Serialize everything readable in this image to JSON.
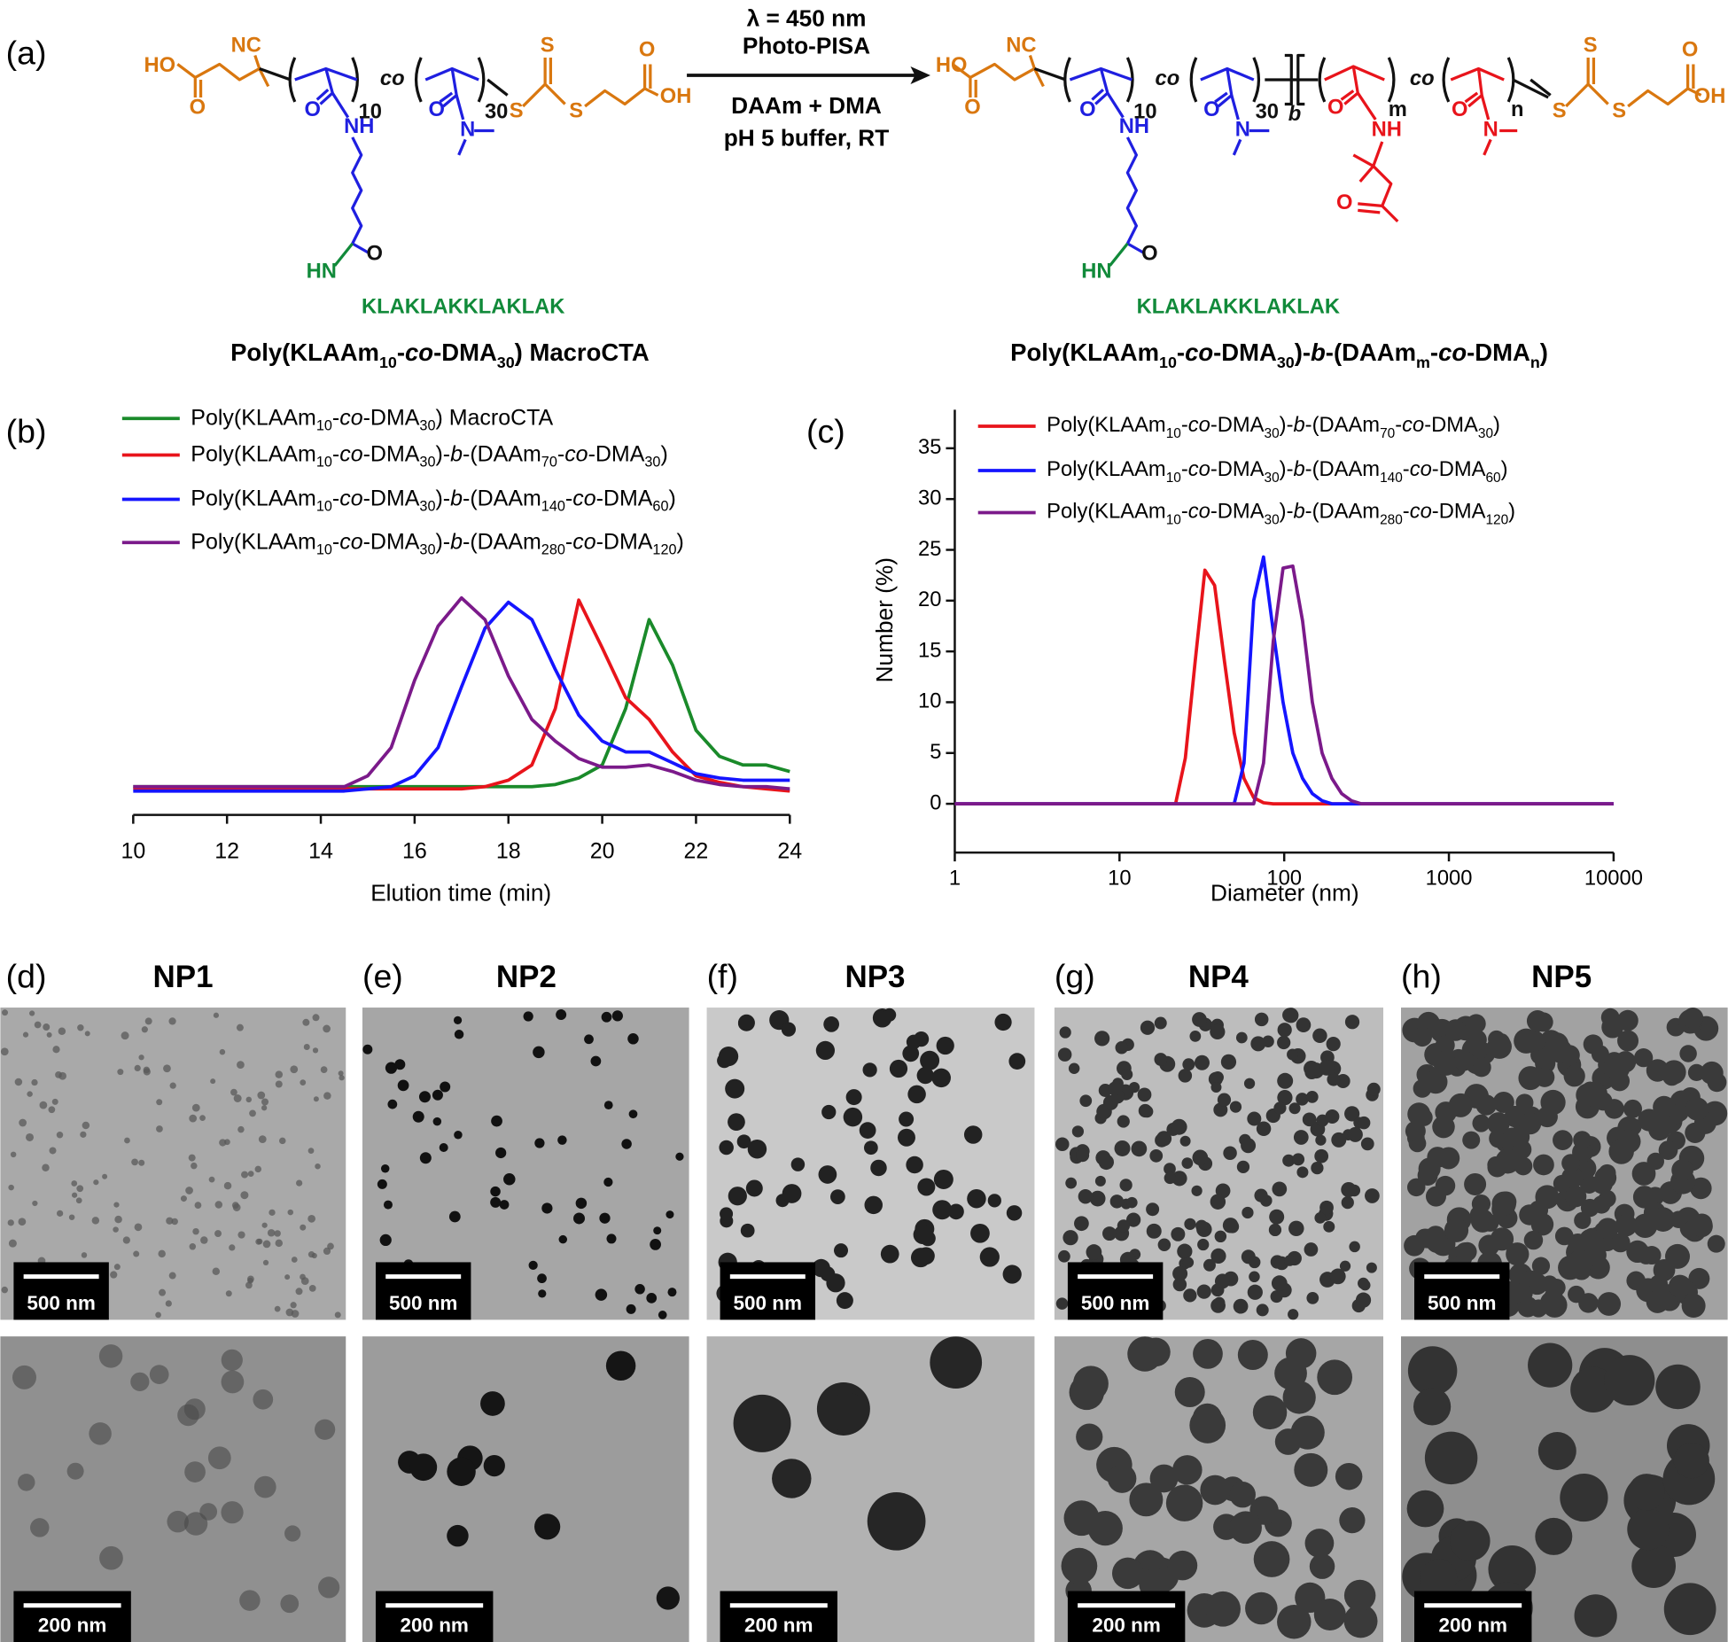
{
  "panel_labels": [
    "(a)",
    "(b)",
    "(c)",
    "(d)",
    "(e)",
    "(f)",
    "(g)",
    "(h)"
  ],
  "scheme": {
    "reaction_conditions": [
      "λ = 450 nm",
      "Photo-PISA",
      "DAAm + DMA",
      "pH 5 buffer, RT"
    ],
    "reactant": {
      "atoms": [
        "HO",
        "O",
        "NC",
        "10",
        "co",
        "30",
        "S",
        "S",
        "S",
        "O",
        "OH",
        "O",
        "NH",
        "O",
        "N",
        "HN",
        "O",
        "KLAKLAKKLAKLAK"
      ],
      "name": "Poly(KLAAm10-co-DMA30) MacroCTA"
    },
    "product": {
      "atoms": [
        "HO",
        "O",
        "NC",
        "10",
        "co",
        "30",
        "b",
        "m",
        "co",
        "n",
        "S",
        "S",
        "S",
        "O",
        "OH",
        "O",
        "NH",
        "O",
        "N",
        "O",
        "NH",
        "O",
        "O",
        "N",
        "HN",
        "O",
        "KLAKLAKKLAKLAK"
      ],
      "name": "Poly(KLAAm10-co-DMA30)-b-(DAAmm-co-DMAn)"
    }
  },
  "chart_data": [
    {
      "type": "line",
      "xlabel": "Elution time (min)",
      "x": [
        10,
        10.5,
        11,
        11.5,
        12,
        12.5,
        13,
        13.5,
        14,
        14.5,
        15,
        15.5,
        16,
        16.5,
        17,
        17.5,
        18,
        18.5,
        19,
        19.5,
        20,
        20.5,
        21,
        21.5,
        22,
        22.5,
        23,
        23.5,
        24
      ],
      "xlim": [
        10,
        24
      ],
      "xticks": [
        10,
        12,
        14,
        16,
        18,
        20,
        22,
        24
      ],
      "ylim": [
        0,
        1
      ],
      "legend": "upper left",
      "series": [
        {
          "name": "Poly(KLAAm10-co-DMA30) MacroCTA",
          "color": "#1a8a2a",
          "values": [
            0.13,
            0.13,
            0.13,
            0.13,
            0.13,
            0.13,
            0.13,
            0.13,
            0.13,
            0.13,
            0.13,
            0.13,
            0.13,
            0.13,
            0.13,
            0.13,
            0.13,
            0.13,
            0.14,
            0.17,
            0.23,
            0.49,
            0.9,
            0.69,
            0.39,
            0.27,
            0.23,
            0.23,
            0.2
          ]
        },
        {
          "name": "Poly(KLAAm10-co-DMA30)-b-(DAAm70-co-DMA30)",
          "color": "#e8141b",
          "values": [
            0.12,
            0.12,
            0.12,
            0.12,
            0.12,
            0.12,
            0.12,
            0.12,
            0.12,
            0.12,
            0.12,
            0.12,
            0.12,
            0.12,
            0.12,
            0.13,
            0.16,
            0.23,
            0.49,
            0.99,
            0.77,
            0.54,
            0.44,
            0.29,
            0.18,
            0.15,
            0.13,
            0.12,
            0.11
          ]
        },
        {
          "name": "Poly(KLAAm10-co-DMA30)-b-(DAAm140-co-DMA60)",
          "color": "#1515ff",
          "values": [
            0.11,
            0.11,
            0.11,
            0.11,
            0.11,
            0.11,
            0.11,
            0.11,
            0.11,
            0.11,
            0.12,
            0.13,
            0.18,
            0.31,
            0.59,
            0.86,
            0.98,
            0.9,
            0.67,
            0.46,
            0.34,
            0.29,
            0.29,
            0.24,
            0.19,
            0.17,
            0.16,
            0.16,
            0.16
          ]
        },
        {
          "name": "Poly(KLAAm10-co-DMA30)-b-(DAAm280-co-DMA120)",
          "color": "#7b1a8a",
          "values": [
            0.13,
            0.13,
            0.13,
            0.13,
            0.13,
            0.13,
            0.13,
            0.13,
            0.13,
            0.13,
            0.18,
            0.31,
            0.62,
            0.87,
            1.0,
            0.9,
            0.64,
            0.44,
            0.34,
            0.26,
            0.22,
            0.22,
            0.23,
            0.2,
            0.16,
            0.14,
            0.13,
            0.13,
            0.12
          ]
        }
      ]
    },
    {
      "type": "line",
      "xlabel": "Diameter (nm)",
      "ylabel": "Number (%)",
      "xscale": "log",
      "x": [
        1,
        19,
        21.9,
        25.1,
        28.8,
        33,
        37.8,
        43.4,
        49.7,
        57,
        65.3,
        74.9,
        85.8,
        98.4,
        112.8,
        129.3,
        148.2,
        169.9,
        194.8,
        223.3,
        256,
        293.4,
        336.4,
        10000
      ],
      "xlim": [
        1,
        10000
      ],
      "xticks": [
        1,
        10,
        100,
        1000,
        10000
      ],
      "ylim": [
        -4.8,
        38.8
      ],
      "yticks": [
        0,
        5,
        10,
        15,
        20,
        25,
        30,
        35
      ],
      "legend": "upper right",
      "series": [
        {
          "name": "Poly(KLAAm10-co-DMA30)-b-(DAAm70-co-DMA30)",
          "color": "#e8141b",
          "values": [
            0,
            0,
            0,
            4.5,
            14,
            23,
            21.5,
            14,
            7,
            2.5,
            0.6,
            0.1,
            0,
            0,
            0,
            0,
            0,
            0,
            0,
            0,
            0,
            0,
            0,
            0
          ]
        },
        {
          "name": "Poly(KLAAm10-co-DMA30)-b-(DAAm140-co-DMA60)",
          "color": "#1515ff",
          "values": [
            0,
            0,
            0,
            0,
            0,
            0,
            0,
            0,
            0,
            4,
            20,
            24.3,
            17,
            10,
            5,
            2.5,
            1,
            0.3,
            0,
            0,
            0,
            0,
            0,
            0
          ]
        },
        {
          "name": "Poly(KLAAm10-co-DMA30)-b-(DAAm280-co-DMA120)",
          "color": "#7b1a8a",
          "values": [
            0,
            0,
            0,
            0,
            0,
            0,
            0,
            0,
            0,
            0,
            0,
            4,
            16,
            23.2,
            23.4,
            18,
            10,
            5,
            2.5,
            1,
            0.3,
            0,
            0,
            0
          ]
        }
      ]
    }
  ],
  "tem": {
    "panels": [
      {
        "title": "NP1",
        "scale_bars": [
          "500 nm",
          "200 nm"
        ]
      },
      {
        "title": "NP2",
        "scale_bars": [
          "500 nm",
          "200 nm"
        ]
      },
      {
        "title": "NP3",
        "scale_bars": [
          "500 nm",
          "200 nm"
        ]
      },
      {
        "title": "NP4",
        "scale_bars": [
          "500 nm",
          "200 nm"
        ]
      },
      {
        "title": "NP5",
        "scale_bars": [
          "500 nm",
          "200 nm"
        ]
      }
    ]
  }
}
